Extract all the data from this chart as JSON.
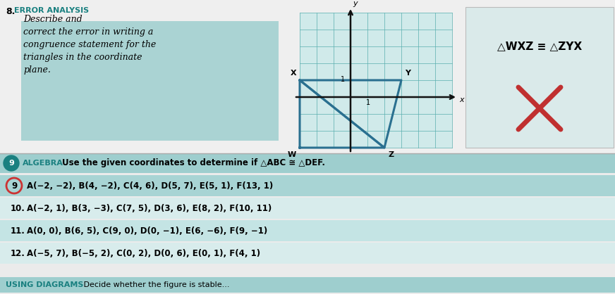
{
  "bg_color": "#d8d8d8",
  "page_bg": "#f0f0f0",
  "problem8_number": "8.",
  "problem8_label": "ERROR ANALYSIS",
  "problem8_label_color": "#1a8080",
  "problem8_text_lines": [
    "Describe and",
    "correct the error in writing a",
    "congruence statement for the",
    "triangles in the coordinate",
    "plane."
  ],
  "problem8_highlight_color": "#9ecece",
  "congruence_statement": "△WXZ ≡ △ZYX",
  "grid_bg": "#d0eaea",
  "grid_line_color": "#5aafaf",
  "triangle_color": "#2a7090",
  "axis_color": "#111111",
  "stmt_box_bg": "#d8eaea",
  "x_color": "#c03030",
  "algebra_badge_bg": "#1a8080",
  "algebra_badge_text": "9",
  "algebra_header_bg": "#9ecece",
  "algebra_label": "ALGEBRA",
  "algebra_label_color": "#1a8080",
  "algebra_text": "Use the given coordinates to determine if △ABC ≅ △DEF.",
  "problems": [
    {
      "num": "9.",
      "text": "A(−2, −2), B(4, −2), C(4, 6), D(5, 7), E(5, 1), F(13, 1)",
      "circled": true,
      "bg": "#a8d4d4"
    },
    {
      "num": "10.",
      "text": "A(−2, 1), B(3, −3), C(7, 5), D(3, 6), E(8, 2), F(10, 11)",
      "circled": false,
      "bg": "#d8ecec"
    },
    {
      "num": "11.",
      "text": "A(0, 0), B(6, 5), C(9, 0), D(0, −1), E(6, −6), F(9, −1)",
      "circled": false,
      "bg": "#c4e4e4"
    },
    {
      "num": "12.",
      "text": "A(−5, 7), B(−5, 2), C(0, 2), D(0, 6), E(0, 1), F(4, 1)",
      "circled": false,
      "bg": "#d8ecec"
    }
  ],
  "footer_label": "USING DIAGRAMS",
  "footer_label_color": "#1a8080",
  "footer_text": "Decide whether the figure is stable...",
  "footer_bg": "#9ecece"
}
